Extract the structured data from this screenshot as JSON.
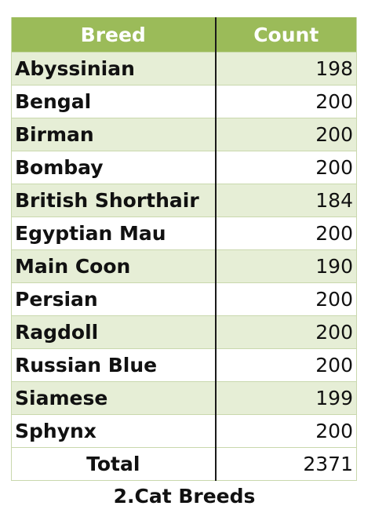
{
  "table": {
    "header": {
      "breed": "Breed",
      "count": "Count"
    },
    "rows": [
      {
        "breed": "Abyssinian",
        "count": "198"
      },
      {
        "breed": "Bengal",
        "count": "200"
      },
      {
        "breed": "Birman",
        "count": "200"
      },
      {
        "breed": "Bombay",
        "count": "200"
      },
      {
        "breed": "British Shorthair",
        "count": "184"
      },
      {
        "breed": "Egyptian Mau",
        "count": "200"
      },
      {
        "breed": "Main Coon",
        "count": "190"
      },
      {
        "breed": "Persian",
        "count": "200"
      },
      {
        "breed": "Ragdoll",
        "count": "200"
      },
      {
        "breed": "Russian Blue",
        "count": "200"
      },
      {
        "breed": "Siamese",
        "count": "199"
      },
      {
        "breed": "Sphynx",
        "count": "200"
      }
    ],
    "total": {
      "label": "Total",
      "count": "2371"
    }
  },
  "caption": "2.Cat Breeds",
  "colors": {
    "header_bg": "#9bbb59",
    "band_bg": "#e6eed6",
    "header_text": "#ffffff"
  }
}
